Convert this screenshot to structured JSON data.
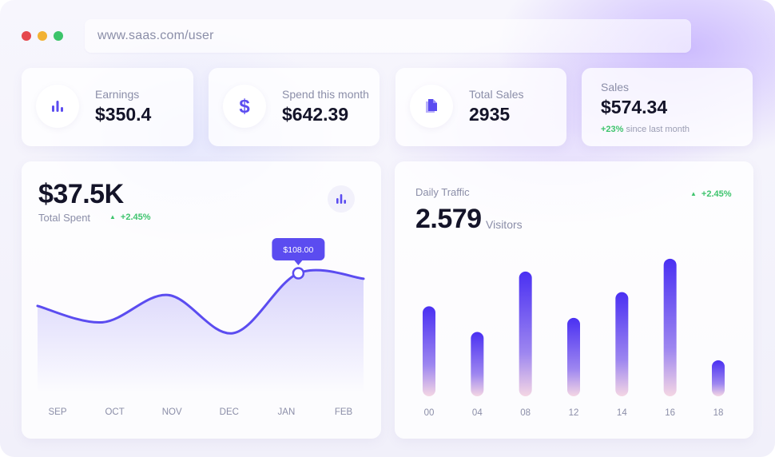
{
  "browser": {
    "url": "www.saas.com/user"
  },
  "stats": [
    {
      "label": "Earnings",
      "value": "$350.4",
      "icon": "bar-chart-icon"
    },
    {
      "label": "Spend this month",
      "value": "$642.39",
      "icon": "dollar-icon"
    },
    {
      "label": "Total Sales",
      "value": "2935",
      "icon": "document-icon"
    }
  ],
  "sales": {
    "label": "Sales",
    "value": "$574.34",
    "change": "+23%",
    "change_text": "since last month"
  },
  "spent": {
    "value": "$37.5K",
    "label": "Total Spent",
    "change": "+2.45%",
    "tooltip": "$108.00"
  },
  "traffic": {
    "label": "Daily Traffic",
    "value": "2.579",
    "unit": "Visitors",
    "change": "+2.45%"
  },
  "colors": {
    "accent": "#5b4cf0",
    "positive": "#3ec46d",
    "text_dark": "#141429",
    "muted": "#8b8ea8"
  },
  "chart_data": [
    {
      "type": "area",
      "title": "Total Spent",
      "categories": [
        "SEP",
        "OCT",
        "NOV",
        "DEC",
        "JAN",
        "FEB"
      ],
      "values": [
        70,
        55,
        80,
        45,
        100,
        95
      ],
      "highlight": {
        "category": "JAN",
        "label": "$108.00"
      },
      "grid": false
    },
    {
      "type": "bar",
      "title": "Daily Traffic",
      "categories": [
        "00",
        "04",
        "08",
        "12",
        "14",
        "16",
        "18"
      ],
      "values": [
        70,
        50,
        97,
        61,
        81,
        107,
        28
      ],
      "ylim": [
        0,
        110
      ],
      "grid": false
    }
  ]
}
